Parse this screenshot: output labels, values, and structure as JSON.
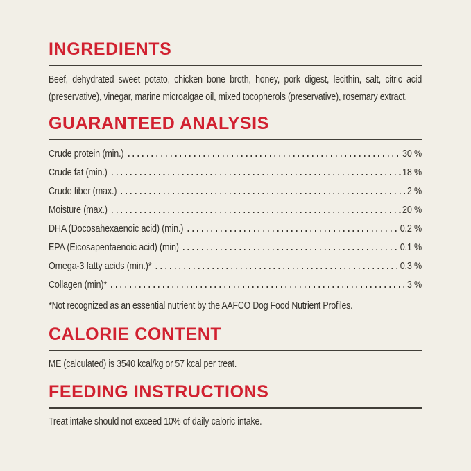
{
  "colors": {
    "background": "#f2efe7",
    "accent": "#d12130",
    "text": "#35322c",
    "rule": "#413e38"
  },
  "ingredients": {
    "title": "INGREDIENTS",
    "body": "Beef, dehydrated sweet potato, chicken bone broth, honey, pork digest, lecithin, salt, citric acid (preservative), vinegar, marine microalgae oil, mixed tocopherols (preservative), rosemary extract."
  },
  "guaranteed_analysis": {
    "title": "GUARANTEED ANALYSIS",
    "rows": [
      {
        "label": "Crude protein (min.)",
        "value": "30 %"
      },
      {
        "label": "Crude fat (min.)",
        "value": "18 %"
      },
      {
        "label": "Crude fiber (max.)",
        "value": "2 %"
      },
      {
        "label": "Moisture (max.)",
        "value": "20 %"
      },
      {
        "label": "DHA (Docosahexaenoic acid) (min.)",
        "value": "0.2 %"
      },
      {
        "label": "EPA (Eicosapentaenoic acid) (min)",
        "value": "0.1 %"
      },
      {
        "label": "Omega-3 fatty acids (min.)*",
        "value": "0.3 %"
      },
      {
        "label": "Collagen (min)*",
        "value": "3 %"
      }
    ],
    "footnote": "*Not recognized as an essential nutrient by the AAFCO Dog Food Nutrient Profiles."
  },
  "calorie_content": {
    "title": "CALORIE CONTENT",
    "body": "ME (calculated) is 3540 kcal/kg or 57 kcal per treat."
  },
  "feeding_instructions": {
    "title": "FEEDING INSTRUCTIONS",
    "body": "Treat intake should not exceed 10% of daily caloric intake."
  }
}
